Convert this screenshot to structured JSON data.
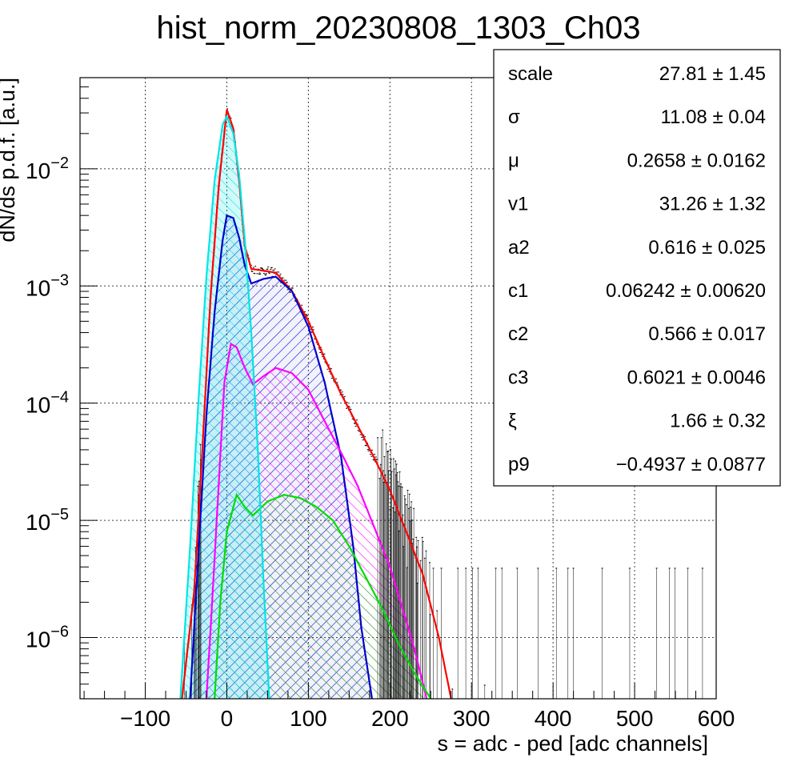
{
  "chart_data": {
    "type": "line",
    "title": "hist_norm_20230808_1303_Ch03",
    "xlabel": "s = adc - ped [adc channels]",
    "ylabel": "dN/ds p.d.f. [a.u.]",
    "xlim": [
      -180,
      600
    ],
    "ylim": [
      3e-07,
      0.06
    ],
    "y_scale": "log",
    "grid": true,
    "x_ticks": [
      {
        "value": -100,
        "label": "−100"
      },
      {
        "value": 0,
        "label": "0"
      },
      {
        "value": 100,
        "label": "100"
      },
      {
        "value": 200,
        "label": "200"
      },
      {
        "value": 300,
        "label": "300"
      },
      {
        "value": 400,
        "label": "400"
      },
      {
        "value": 500,
        "label": "500"
      },
      {
        "value": 600,
        "label": "600"
      }
    ],
    "y_ticks": [
      {
        "value": 0.01,
        "base": "10",
        "exp": "−2"
      },
      {
        "value": 0.001,
        "base": "10",
        "exp": "−3"
      },
      {
        "value": 0.0001,
        "base": "10",
        "exp": "−4"
      },
      {
        "value": 1e-05,
        "base": "10",
        "exp": "−5"
      },
      {
        "value": 1e-06,
        "base": "10",
        "exp": "−6"
      }
    ],
    "series": [
      {
        "color": "#ff0000",
        "points": [
          [
            -55,
            3e-07
          ],
          [
            -40,
            2.5e-06
          ],
          [
            -30,
            4e-05
          ],
          [
            -20,
            0.0008
          ],
          [
            -10,
            0.007
          ],
          [
            0,
            0.032
          ],
          [
            8,
            0.022
          ],
          [
            15,
            0.008
          ],
          [
            22,
            0.0022
          ],
          [
            30,
            0.0014
          ],
          [
            45,
            0.00135
          ],
          [
            60,
            0.0013
          ],
          [
            80,
            0.0009
          ],
          [
            100,
            0.0005
          ],
          [
            120,
            0.00024
          ],
          [
            140,
            0.00012
          ],
          [
            160,
            6.5e-05
          ],
          [
            180,
            3.5e-05
          ],
          [
            200,
            1.8e-05
          ],
          [
            220,
            8e-06
          ],
          [
            240,
            3.5e-06
          ],
          [
            260,
            1e-06
          ],
          [
            275,
            3e-07
          ]
        ]
      },
      {
        "color": "#00e5e5",
        "points": [
          [
            -57,
            3e-07
          ],
          [
            -45,
            6e-06
          ],
          [
            -35,
            0.0001
          ],
          [
            -25,
            0.0012
          ],
          [
            -15,
            0.008
          ],
          [
            -5,
            0.024
          ],
          [
            0,
            0.028
          ],
          [
            8,
            0.02
          ],
          [
            15,
            0.009
          ],
          [
            22,
            0.0025
          ],
          [
            30,
            0.0004
          ],
          [
            38,
            4e-05
          ],
          [
            45,
            3e-06
          ],
          [
            52,
            3e-07
          ]
        ]
      },
      {
        "color": "#0000cc",
        "points": [
          [
            -45,
            3e-07
          ],
          [
            -35,
            5e-06
          ],
          [
            -25,
            8e-05
          ],
          [
            -15,
            0.0006
          ],
          [
            -5,
            0.0025
          ],
          [
            0,
            0.004
          ],
          [
            8,
            0.0038
          ],
          [
            15,
            0.0026
          ],
          [
            22,
            0.0015
          ],
          [
            30,
            0.00105
          ],
          [
            45,
            0.00115
          ],
          [
            60,
            0.0012
          ],
          [
            80,
            0.0009
          ],
          [
            100,
            0.00045
          ],
          [
            120,
            0.00015
          ],
          [
            140,
            3.5e-05
          ],
          [
            155,
            6e-06
          ],
          [
            165,
            1.2e-06
          ],
          [
            178,
            3e-07
          ]
        ]
      },
      {
        "color": "#ff00ff",
        "points": [
          [
            -25,
            3e-07
          ],
          [
            -18,
            2e-06
          ],
          [
            -10,
            2e-05
          ],
          [
            -3,
            0.00015
          ],
          [
            5,
            0.00032
          ],
          [
            12,
            0.0003
          ],
          [
            22,
            0.0002
          ],
          [
            32,
            0.000145
          ],
          [
            45,
            0.00017
          ],
          [
            60,
            0.0002
          ],
          [
            80,
            0.00018
          ],
          [
            100,
            0.00013
          ],
          [
            120,
            7e-05
          ],
          [
            140,
            3.8e-05
          ],
          [
            160,
            2e-05
          ],
          [
            180,
            9e-06
          ],
          [
            200,
            4e-06
          ],
          [
            215,
            1.8e-06
          ],
          [
            230,
            8e-07
          ],
          [
            245,
            3e-07
          ]
        ]
      },
      {
        "color": "#00dd00",
        "points": [
          [
            -15,
            3e-07
          ],
          [
            -8,
            2e-06
          ],
          [
            0,
            8e-06
          ],
          [
            12,
            1.65e-05
          ],
          [
            22,
            1.3e-05
          ],
          [
            32,
            1.1e-05
          ],
          [
            50,
            1.45e-05
          ],
          [
            70,
            1.65e-05
          ],
          [
            90,
            1.55e-05
          ],
          [
            110,
            1.3e-05
          ],
          [
            130,
            1e-05
          ],
          [
            150,
            6e-06
          ],
          [
            170,
            3.3e-06
          ],
          [
            190,
            1.8e-06
          ],
          [
            210,
            9e-07
          ],
          [
            230,
            5e-07
          ],
          [
            250,
            3e-07
          ]
        ]
      }
    ],
    "data_points": {
      "color": "#000000",
      "x_start": -100,
      "x_end": 600,
      "note": ""
    },
    "stats": [
      {
        "key": "scale",
        "value": "27.81 ± 1.45"
      },
      {
        "key": "σ",
        "value": "11.08 ± 0.04"
      },
      {
        "key": "μ",
        "value": "0.2658 ± 0.0162"
      },
      {
        "key": "v1",
        "value": "31.26 ± 1.32"
      },
      {
        "key": "a2",
        "value": "0.616 ± 0.025"
      },
      {
        "key": "c1",
        "value": "0.06242 ± 0.00620"
      },
      {
        "key": "c2",
        "value": "0.566 ± 0.017"
      },
      {
        "key": "c3",
        "value": "0.6021 ± 0.0046"
      },
      {
        "key": "ξ",
        "value": "1.66 ± 0.32"
      },
      {
        "key": "p9",
        "value": "−0.4937 ± 0.0877"
      }
    ]
  }
}
